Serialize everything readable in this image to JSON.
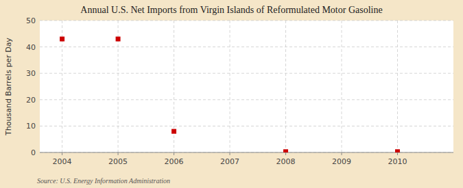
{
  "chart_data": {
    "type": "scatter",
    "title": "Annual U.S. Net Imports from Virgin Islands of Reformulated Motor Gasoline",
    "y_label": "Thousand Barrels per Day",
    "source": "Source: U.S. Energy Information Administration",
    "x": [
      2004,
      2005,
      2006,
      2008,
      2010
    ],
    "values": [
      43.0,
      43.0,
      8.0,
      0.3,
      0.3
    ],
    "color": "#cc0000",
    "marker": "square",
    "xlim": [
      2003.6,
      2011.0
    ],
    "ylim": [
      0,
      50
    ],
    "xticks": [
      2004,
      2005,
      2006,
      2007,
      2008,
      2009,
      2010
    ],
    "yticks": [
      0,
      10,
      20,
      30,
      40,
      50
    ],
    "grid": true
  }
}
